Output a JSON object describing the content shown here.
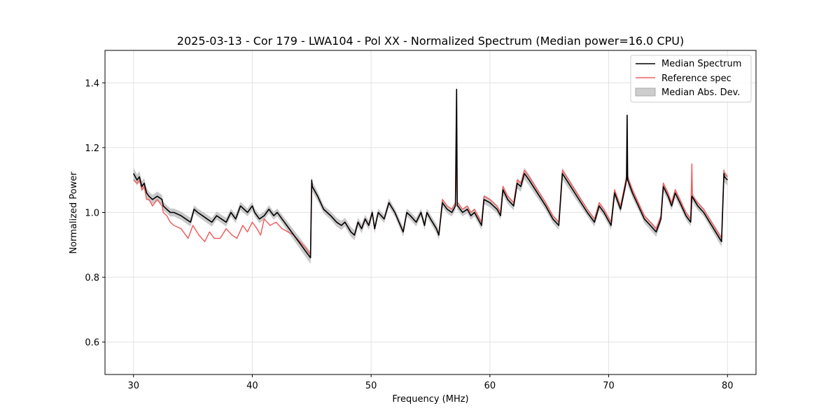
{
  "chart_data": {
    "type": "line",
    "title": "2025-03-13 - Cor 179 - LWA104 - Pol XX - Normalized Spectrum (Median power=16.0 CPU)",
    "xlabel": "Frequency (MHz)",
    "ylabel": "Normalized Power",
    "xlim": [
      27.6,
      82.4
    ],
    "ylim": [
      0.5,
      1.5
    ],
    "xticks": [
      30,
      40,
      50,
      60,
      70,
      80
    ],
    "yticks": [
      0.6,
      0.8,
      1.0,
      1.2,
      1.4
    ],
    "grid": true,
    "legend": {
      "position": "top-right",
      "entries": [
        "Median Spectrum",
        "Reference spec",
        "Median Abs. Dev."
      ]
    },
    "series": [
      {
        "name": "Median Spectrum",
        "color": "#000000",
        "x": [
          30.0,
          30.3,
          30.5,
          30.7,
          30.9,
          31.1,
          31.3,
          31.6,
          32.0,
          32.4,
          32.5,
          32.8,
          33.1,
          33.4,
          34.0,
          34.4,
          34.8,
          35.1,
          35.4,
          35.8,
          36.2,
          36.6,
          37.0,
          37.4,
          37.8,
          38.2,
          38.6,
          39.0,
          39.3,
          39.6,
          40.0,
          40.2,
          40.6,
          41.0,
          41.4,
          41.8,
          42.1,
          42.5,
          42.9,
          43.3,
          43.7,
          44.1,
          44.5,
          44.9,
          45.0,
          45.05,
          45.5,
          46.0,
          46.6,
          47.1,
          47.5,
          47.8,
          48.3,
          48.6,
          48.9,
          49.2,
          49.5,
          49.8,
          50.1,
          50.3,
          50.6,
          51.1,
          51.5,
          52.0,
          52.7,
          53.0,
          53.3,
          53.8,
          54.2,
          54.5,
          54.7,
          55.0,
          55.5,
          55.7,
          56.0,
          56.4,
          56.8,
          57.1,
          57.2,
          57.25,
          57.3,
          57.7,
          58.1,
          58.4,
          58.7,
          59.0,
          59.3,
          59.5,
          60.0,
          60.3,
          60.6,
          60.9,
          61.1,
          61.5,
          62.0,
          62.3,
          62.6,
          62.9,
          63.3,
          64.0,
          64.7,
          65.3,
          65.8,
          66.1,
          66.8,
          67.5,
          68.2,
          68.8,
          69.2,
          69.6,
          69.9,
          70.2,
          70.5,
          70.8,
          71.0,
          71.5,
          71.55,
          71.6,
          71.8,
          72.0,
          72.5,
          73.0,
          73.5,
          74.0,
          74.4,
          74.6,
          75.0,
          75.3,
          75.6,
          76.0,
          76.5,
          76.9,
          77.0,
          77.5,
          78.0,
          78.5,
          79.0,
          79.5,
          79.7,
          79.75,
          80.0
        ],
        "y": [
          1.12,
          1.1,
          1.11,
          1.08,
          1.09,
          1.06,
          1.05,
          1.04,
          1.05,
          1.04,
          1.02,
          1.01,
          1.0,
          1.0,
          0.99,
          0.98,
          0.97,
          1.01,
          1.0,
          0.99,
          0.98,
          0.97,
          0.99,
          0.98,
          0.97,
          1.0,
          0.98,
          1.02,
          1.01,
          1.0,
          1.02,
          1.0,
          0.98,
          0.99,
          1.01,
          0.99,
          1.0,
          0.98,
          0.96,
          0.94,
          0.92,
          0.9,
          0.88,
          0.86,
          1.1,
          1.08,
          1.05,
          1.01,
          0.99,
          0.97,
          0.96,
          0.97,
          0.94,
          0.93,
          0.97,
          0.95,
          0.98,
          0.96,
          1.0,
          0.95,
          1.0,
          0.98,
          1.03,
          1.0,
          0.94,
          1.0,
          0.99,
          0.97,
          1.0,
          0.96,
          1.0,
          0.98,
          0.95,
          0.93,
          1.03,
          1.01,
          1.0,
          1.02,
          1.38,
          1.02,
          1.02,
          1.0,
          1.01,
          0.99,
          1.0,
          0.98,
          0.96,
          1.04,
          1.03,
          1.02,
          1.01,
          0.99,
          1.07,
          1.04,
          1.02,
          1.09,
          1.08,
          1.12,
          1.1,
          1.06,
          1.02,
          0.98,
          0.96,
          1.12,
          1.08,
          1.04,
          1.0,
          0.97,
          1.02,
          1.0,
          0.98,
          0.96,
          1.06,
          1.03,
          1.01,
          1.1,
          1.3,
          1.1,
          1.08,
          1.06,
          1.02,
          0.98,
          0.96,
          0.94,
          0.98,
          1.08,
          1.05,
          1.02,
          1.06,
          1.03,
          0.99,
          0.97,
          1.05,
          1.02,
          1.0,
          0.97,
          0.94,
          0.91,
          1.12,
          1.11,
          1.1
        ]
      },
      {
        "name": "Reference spec",
        "color": "#f06060",
        "x": [
          30.0,
          30.3,
          30.5,
          30.7,
          30.9,
          31.1,
          31.3,
          31.6,
          32.0,
          32.4,
          32.5,
          32.8,
          33.1,
          33.4,
          34.0,
          34.6,
          35.0,
          35.5,
          36.0,
          36.4,
          36.8,
          37.3,
          37.8,
          38.3,
          38.7,
          39.2,
          39.6,
          40.0,
          40.4,
          40.7,
          41.0,
          41.5,
          42.0,
          42.5,
          43.0,
          43.5,
          44.0,
          44.5,
          44.9,
          45.0,
          45.05,
          45.5,
          46.0,
          46.6,
          47.1,
          47.5,
          47.8,
          48.3,
          48.6,
          48.9,
          49.2,
          49.5,
          49.8,
          50.1,
          50.3,
          50.6,
          51.1,
          51.5,
          52.0,
          52.7,
          53.0,
          53.3,
          53.8,
          54.2,
          54.5,
          54.7,
          55.0,
          55.5,
          55.7,
          56.0,
          56.4,
          56.8,
          57.1,
          57.2,
          57.25,
          57.3,
          57.7,
          58.1,
          58.4,
          58.7,
          59.0,
          59.3,
          59.5,
          60.0,
          60.3,
          60.6,
          60.9,
          61.1,
          61.5,
          62.0,
          62.3,
          62.6,
          62.9,
          63.3,
          64.0,
          64.7,
          65.3,
          65.8,
          66.1,
          66.8,
          67.5,
          68.2,
          68.8,
          69.2,
          69.6,
          69.9,
          70.2,
          70.5,
          70.8,
          71.0,
          71.5,
          71.55,
          71.6,
          71.8,
          72.0,
          72.5,
          73.0,
          73.5,
          74.0,
          74.4,
          74.6,
          75.0,
          75.3,
          75.6,
          76.0,
          76.5,
          76.9,
          77.0,
          77.05,
          77.5,
          78.0,
          78.5,
          79.0,
          79.5,
          79.7,
          79.75,
          80.0
        ],
        "y": [
          1.1,
          1.09,
          1.1,
          1.07,
          1.08,
          1.04,
          1.04,
          1.02,
          1.04,
          1.02,
          1.0,
          0.99,
          0.97,
          0.96,
          0.95,
          0.92,
          0.96,
          0.93,
          0.91,
          0.94,
          0.92,
          0.92,
          0.95,
          0.93,
          0.92,
          0.96,
          0.94,
          0.97,
          0.95,
          0.93,
          0.98,
          0.96,
          0.97,
          0.95,
          0.94,
          0.93,
          0.91,
          0.89,
          0.87,
          1.09,
          1.08,
          1.05,
          1.01,
          0.99,
          0.97,
          0.96,
          0.97,
          0.94,
          0.93,
          0.97,
          0.95,
          0.98,
          0.96,
          1.0,
          0.95,
          1.0,
          0.98,
          1.03,
          1.0,
          0.94,
          1.0,
          0.99,
          0.97,
          1.0,
          0.96,
          1.0,
          0.98,
          0.95,
          0.93,
          1.04,
          1.02,
          1.01,
          1.03,
          1.23,
          1.03,
          1.03,
          1.01,
          1.02,
          1.0,
          1.01,
          0.99,
          0.97,
          1.05,
          1.04,
          1.03,
          1.02,
          1.0,
          1.08,
          1.05,
          1.03,
          1.1,
          1.09,
          1.13,
          1.11,
          1.07,
          1.03,
          0.99,
          0.97,
          1.13,
          1.09,
          1.05,
          1.01,
          0.98,
          1.03,
          1.01,
          0.99,
          0.97,
          1.07,
          1.04,
          1.02,
          1.11,
          1.11,
          1.11,
          1.09,
          1.07,
          1.03,
          0.99,
          0.97,
          0.95,
          0.99,
          1.09,
          1.06,
          1.03,
          1.07,
          1.04,
          1.0,
          0.98,
          1.15,
          1.05,
          1.03,
          1.01,
          0.98,
          0.95,
          0.92,
          1.13,
          1.12,
          1.11
        ]
      }
    ],
    "band": {
      "name": "Median Abs. Dev.",
      "color": "#c0c0c0",
      "center_series": "Median Spectrum",
      "half_width": 0.012
    }
  }
}
